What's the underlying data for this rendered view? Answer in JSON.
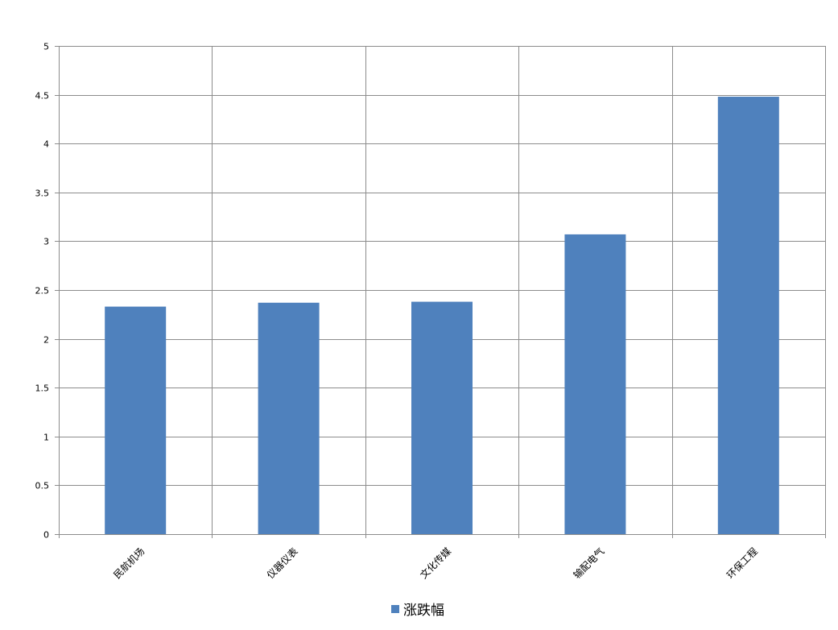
{
  "chart_data": {
    "type": "bar",
    "categories": [
      "民航机场",
      "仪器仪表",
      "文化传媒",
      "输配电气",
      "环保工程"
    ],
    "series": [
      {
        "name": "涨跌幅",
        "values": [
          2.33,
          2.37,
          2.38,
          3.07,
          4.48
        ],
        "color": "#4f81bd"
      }
    ],
    "yticks": [
      "0",
      "0.5",
      "1",
      "1.5",
      "2",
      "2.5",
      "3",
      "3.5",
      "4",
      "4.5",
      "5"
    ],
    "ylim": [
      0,
      5
    ],
    "grid": true,
    "legend_position": "bottom",
    "xlabel": "",
    "ylabel": "",
    "title": ""
  }
}
